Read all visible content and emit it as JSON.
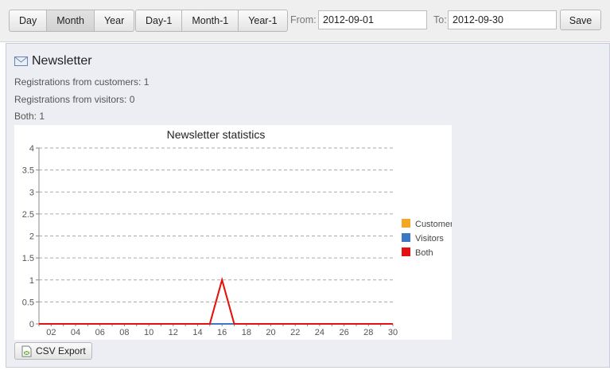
{
  "toolbar": {
    "period_buttons": [
      {
        "label": "Day",
        "active": false
      },
      {
        "label": "Month",
        "active": true
      },
      {
        "label": "Year",
        "active": false
      }
    ],
    "offset_buttons": [
      {
        "label": "Day-1"
      },
      {
        "label": "Month-1"
      },
      {
        "label": "Year-1"
      }
    ],
    "from_label": "From:",
    "from_value": "2012-09-01",
    "to_label": "To:",
    "to_value": "2012-09-30",
    "save_label": "Save"
  },
  "panel": {
    "title": "Newsletter",
    "icon": "envelope-icon",
    "stats": [
      "Registrations from customers: 1",
      "Registrations from visitors: 0",
      "Both: 1"
    ],
    "csv_label": "CSV Export"
  },
  "chart_data": {
    "type": "line",
    "title": "Newsletter statistics",
    "x": [
      1,
      2,
      3,
      4,
      5,
      6,
      7,
      8,
      9,
      10,
      11,
      12,
      13,
      14,
      15,
      16,
      17,
      18,
      19,
      20,
      21,
      22,
      23,
      24,
      25,
      26,
      27,
      28,
      29,
      30
    ],
    "x_ticks": [
      "02",
      "04",
      "06",
      "08",
      "10",
      "12",
      "14",
      "16",
      "18",
      "20",
      "22",
      "24",
      "26",
      "28",
      "30"
    ],
    "ylim": [
      0,
      4
    ],
    "y_ticks": [
      "0",
      "0.5",
      "1",
      "1.5",
      "2",
      "2.5",
      "3",
      "3.5",
      "4"
    ],
    "grid": true,
    "legend_position": "right",
    "series": [
      {
        "name": "Customers",
        "color": "#f5a623",
        "values": [
          0,
          0,
          0,
          0,
          0,
          0,
          0,
          0,
          0,
          0,
          0,
          0,
          0,
          0,
          0,
          1,
          0,
          0,
          0,
          0,
          0,
          0,
          0,
          0,
          0,
          0,
          0,
          0,
          0,
          0
        ]
      },
      {
        "name": "Visitors",
        "color": "#3a78c3",
        "values": [
          0,
          0,
          0,
          0,
          0,
          0,
          0,
          0,
          0,
          0,
          0,
          0,
          0,
          0,
          0,
          0,
          0,
          0,
          0,
          0,
          0,
          0,
          0,
          0,
          0,
          0,
          0,
          0,
          0,
          0
        ]
      },
      {
        "name": "Both",
        "color": "#e31111",
        "values": [
          0,
          0,
          0,
          0,
          0,
          0,
          0,
          0,
          0,
          0,
          0,
          0,
          0,
          0,
          0,
          1,
          0,
          0,
          0,
          0,
          0,
          0,
          0,
          0,
          0,
          0,
          0,
          0,
          0,
          0
        ]
      }
    ]
  }
}
